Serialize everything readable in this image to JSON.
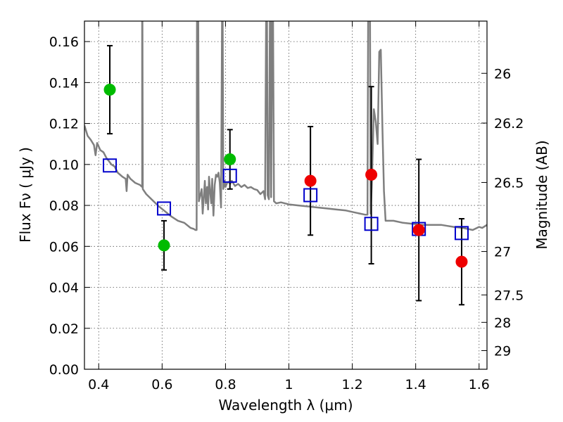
{
  "chart_data": {
    "type": "scatter",
    "xlabel": "Wavelength  λ (μm)",
    "ylabel": "Flux  Fν  ( μJy )",
    "y2label": "Magnitude (AB)",
    "xlim": [
      0.355,
      1.625
    ],
    "ylim": [
      0.0,
      0.17
    ],
    "grid": true,
    "x_ticks": [
      0.4,
      0.6,
      0.8,
      1.0,
      1.2,
      1.4,
      1.6
    ],
    "x_tick_labels": [
      "0.4",
      "0.6",
      "0.8",
      "1",
      "1.2",
      "1.4",
      "1.6"
    ],
    "y_ticks": [
      0.0,
      0.02,
      0.04,
      0.06,
      0.08,
      0.1,
      0.12,
      0.14,
      0.16
    ],
    "y_tick_labels": [
      "0.00",
      "0.02",
      "0.04",
      "0.06",
      "0.08",
      "0.10",
      "0.12",
      "0.14",
      "0.16"
    ],
    "y2_ticks": [
      {
        "label": "26",
        "flux": 0.1445
      },
      {
        "label": "26.2",
        "flux": 0.1202
      },
      {
        "label": "26.5",
        "flux": 0.0912
      },
      {
        "label": "27",
        "flux": 0.0575
      },
      {
        "label": "27.5",
        "flux": 0.0363
      },
      {
        "label": "28",
        "flux": 0.0229
      },
      {
        "label": "29",
        "flux": 0.0091
      }
    ],
    "colors": {
      "green": "#00bb00",
      "red": "#ee0000",
      "model": "#7f7f7f",
      "square": "#0000cc",
      "errorbar": "#000000"
    },
    "series": [
      {
        "name": "observed-green",
        "color": "green",
        "points": [
          {
            "x": 0.435,
            "y": 0.1365,
            "err_low": 0.115,
            "err_high": 0.158
          },
          {
            "x": 0.606,
            "y": 0.0605,
            "err_low": 0.0485,
            "err_high": 0.0725
          },
          {
            "x": 0.814,
            "y": 0.1025,
            "err_low": 0.088,
            "err_high": 0.117
          }
        ]
      },
      {
        "name": "observed-red",
        "color": "red",
        "points": [
          {
            "x": 1.068,
            "y": 0.092,
            "err_low": 0.0655,
            "err_high": 0.1185
          },
          {
            "x": 1.26,
            "y": 0.095,
            "err_low": 0.0515,
            "err_high": 0.138
          },
          {
            "x": 1.41,
            "y": 0.068,
            "err_low": 0.0335,
            "err_high": 0.1025
          },
          {
            "x": 1.545,
            "y": 0.0525,
            "err_low": 0.0315,
            "err_high": 0.0735
          }
        ]
      },
      {
        "name": "model-photometry",
        "marker": "square",
        "points": [
          {
            "x": 0.435,
            "y": 0.0995
          },
          {
            "x": 0.606,
            "y": 0.0785
          },
          {
            "x": 0.814,
            "y": 0.0945
          },
          {
            "x": 1.068,
            "y": 0.085
          },
          {
            "x": 1.26,
            "y": 0.071
          },
          {
            "x": 1.41,
            "y": 0.0685
          },
          {
            "x": 1.545,
            "y": 0.0665
          }
        ]
      },
      {
        "name": "model-spectrum",
        "type": "line",
        "points": [
          [
            0.355,
            0.119
          ],
          [
            0.365,
            0.114
          ],
          [
            0.375,
            0.112
          ],
          [
            0.385,
            0.1095
          ],
          [
            0.39,
            0.1045
          ],
          [
            0.395,
            0.1105
          ],
          [
            0.405,
            0.107
          ],
          [
            0.415,
            0.106
          ],
          [
            0.425,
            0.103
          ],
          [
            0.433,
            0.1015
          ],
          [
            0.44,
            0.1
          ],
          [
            0.45,
            0.099
          ],
          [
            0.46,
            0.096
          ],
          [
            0.475,
            0.094
          ],
          [
            0.485,
            0.093
          ],
          [
            0.488,
            0.087
          ],
          [
            0.491,
            0.095
          ],
          [
            0.5,
            0.093
          ],
          [
            0.515,
            0.091
          ],
          [
            0.53,
            0.09
          ],
          [
            0.537,
            0.089
          ],
          [
            0.537,
            0.17
          ],
          [
            0.538,
            0.17
          ],
          [
            0.539,
            0.088
          ],
          [
            0.55,
            0.0855
          ],
          [
            0.57,
            0.0825
          ],
          [
            0.59,
            0.0795
          ],
          [
            0.61,
            0.077
          ],
          [
            0.63,
            0.0745
          ],
          [
            0.65,
            0.0725
          ],
          [
            0.67,
            0.0715
          ],
          [
            0.69,
            0.069
          ],
          [
            0.7,
            0.0685
          ],
          [
            0.705,
            0.068
          ],
          [
            0.709,
            0.068
          ],
          [
            0.71,
            0.17
          ],
          [
            0.714,
            0.17
          ],
          [
            0.716,
            0.082
          ],
          [
            0.725,
            0.088
          ],
          [
            0.728,
            0.076
          ],
          [
            0.732,
            0.085
          ],
          [
            0.735,
            0.092
          ],
          [
            0.738,
            0.081
          ],
          [
            0.742,
            0.089
          ],
          [
            0.745,
            0.078
          ],
          [
            0.748,
            0.094
          ],
          [
            0.752,
            0.086
          ],
          [
            0.755,
            0.081
          ],
          [
            0.758,
            0.093
          ],
          [
            0.762,
            0.075
          ],
          [
            0.766,
            0.09
          ],
          [
            0.77,
            0.095
          ],
          [
            0.774,
            0.094
          ],
          [
            0.778,
            0.096
          ],
          [
            0.782,
            0.091
          ],
          [
            0.786,
            0.079
          ],
          [
            0.789,
            0.17
          ],
          [
            0.791,
            0.17
          ],
          [
            0.793,
            0.088
          ],
          [
            0.797,
            0.092
          ],
          [
            0.8,
            0.089
          ],
          [
            0.805,
            0.091
          ],
          [
            0.81,
            0.0915
          ],
          [
            0.815,
            0.0905
          ],
          [
            0.82,
            0.092
          ],
          [
            0.83,
            0.0895
          ],
          [
            0.84,
            0.0905
          ],
          [
            0.85,
            0.089
          ],
          [
            0.86,
            0.09
          ],
          [
            0.87,
            0.0885
          ],
          [
            0.88,
            0.089
          ],
          [
            0.89,
            0.088
          ],
          [
            0.9,
            0.0875
          ],
          [
            0.91,
            0.0855
          ],
          [
            0.92,
            0.087
          ],
          [
            0.925,
            0.083
          ],
          [
            0.928,
            0.17
          ],
          [
            0.931,
            0.17
          ],
          [
            0.933,
            0.085
          ],
          [
            0.937,
            0.083
          ],
          [
            0.94,
            0.17
          ],
          [
            0.942,
            0.17
          ],
          [
            0.944,
            0.084
          ],
          [
            0.947,
            0.17
          ],
          [
            0.95,
            0.17
          ],
          [
            0.953,
            0.082
          ],
          [
            0.96,
            0.081
          ],
          [
            0.975,
            0.0815
          ],
          [
            1.0,
            0.0805
          ],
          [
            1.03,
            0.08
          ],
          [
            1.06,
            0.0795
          ],
          [
            1.09,
            0.079
          ],
          [
            1.12,
            0.0785
          ],
          [
            1.15,
            0.078
          ],
          [
            1.18,
            0.0775
          ],
          [
            1.21,
            0.0765
          ],
          [
            1.24,
            0.0755
          ],
          [
            1.248,
            0.0755
          ],
          [
            1.25,
            0.17
          ],
          [
            1.256,
            0.17
          ],
          [
            1.258,
            0.076
          ],
          [
            1.262,
            0.092
          ],
          [
            1.268,
            0.127
          ],
          [
            1.274,
            0.121
          ],
          [
            1.28,
            0.11
          ],
          [
            1.285,
            0.155
          ],
          [
            1.29,
            0.156
          ],
          [
            1.295,
            0.118
          ],
          [
            1.3,
            0.087
          ],
          [
            1.305,
            0.0725
          ],
          [
            1.33,
            0.0725
          ],
          [
            1.36,
            0.0715
          ],
          [
            1.39,
            0.071
          ],
          [
            1.42,
            0.0705
          ],
          [
            1.45,
            0.0705
          ],
          [
            1.48,
            0.0705
          ],
          [
            1.5,
            0.07
          ],
          [
            1.52,
            0.0695
          ],
          [
            1.55,
            0.069
          ],
          [
            1.58,
            0.068
          ],
          [
            1.6,
            0.0695
          ],
          [
            1.61,
            0.069
          ],
          [
            1.625,
            0.0705
          ]
        ]
      }
    ]
  }
}
